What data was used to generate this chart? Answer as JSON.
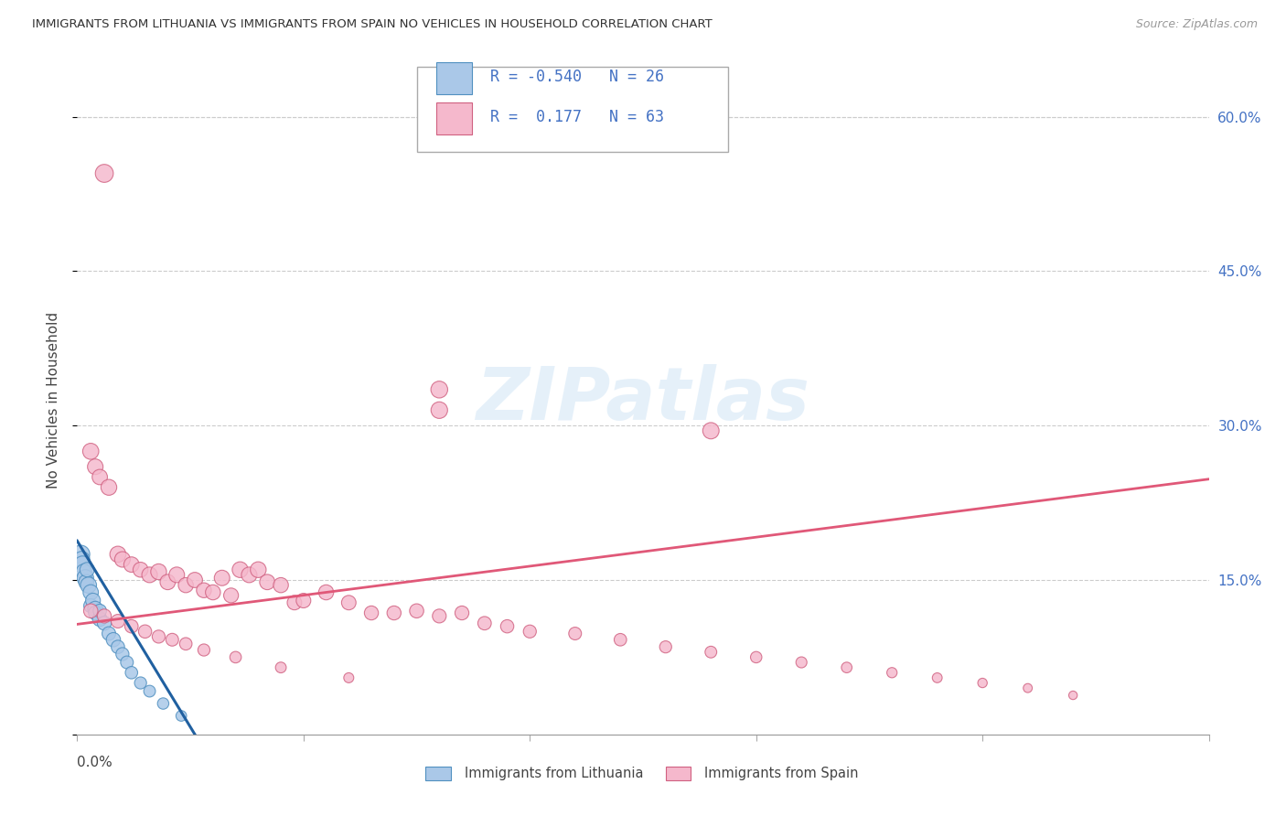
{
  "title": "IMMIGRANTS FROM LITHUANIA VS IMMIGRANTS FROM SPAIN NO VEHICLES IN HOUSEHOLD CORRELATION CHART",
  "source": "Source: ZipAtlas.com",
  "ylabel": "No Vehicles in Household",
  "xlim": [
    0.0,
    0.25
  ],
  "ylim": [
    0.0,
    0.65
  ],
  "lith_color_fill": "#aac8e8",
  "lith_color_edge": "#5090c0",
  "spain_color_fill": "#f5b8cc",
  "spain_color_edge": "#d06080",
  "lith_trend_color": "#2060a0",
  "spain_trend_color": "#e05878",
  "grid_color": "#cccccc",
  "right_tick_color": "#4472c4",
  "legend_text_color": "#4472c4",
  "R_lith_label": "R = -0.540",
  "N_lith_label": "N = 26",
  "R_spain_label": "R =  0.177",
  "N_spain_label": "N = 63",
  "lith_trend": [
    0.0,
    0.188,
    0.026,
    0.0
  ],
  "spain_trend": [
    0.0,
    0.107,
    0.25,
    0.248
  ],
  "lith_x": [
    0.0008,
    0.001,
    0.0012,
    0.0015,
    0.0018,
    0.002,
    0.0022,
    0.0025,
    0.003,
    0.003,
    0.0035,
    0.004,
    0.004,
    0.005,
    0.005,
    0.006,
    0.007,
    0.008,
    0.009,
    0.01,
    0.011,
    0.012,
    0.014,
    0.016,
    0.019,
    0.023
  ],
  "lith_y": [
    0.175,
    0.17,
    0.165,
    0.158,
    0.152,
    0.148,
    0.16,
    0.145,
    0.138,
    0.125,
    0.13,
    0.122,
    0.118,
    0.112,
    0.12,
    0.108,
    0.098,
    0.092,
    0.085,
    0.078,
    0.07,
    0.06,
    0.05,
    0.042,
    0.03,
    0.018
  ],
  "lith_s": [
    200,
    160,
    180,
    150,
    170,
    140,
    130,
    160,
    145,
    120,
    135,
    140,
    115,
    130,
    110,
    120,
    115,
    125,
    110,
    105,
    100,
    95,
    90,
    85,
    80,
    70
  ],
  "spain_x": [
    0.006,
    0.003,
    0.004,
    0.005,
    0.007,
    0.009,
    0.01,
    0.012,
    0.014,
    0.016,
    0.018,
    0.02,
    0.022,
    0.024,
    0.026,
    0.028,
    0.03,
    0.032,
    0.034,
    0.036,
    0.038,
    0.04,
    0.042,
    0.045,
    0.048,
    0.05,
    0.055,
    0.06,
    0.065,
    0.07,
    0.075,
    0.08,
    0.085,
    0.09,
    0.095,
    0.1,
    0.11,
    0.12,
    0.13,
    0.14,
    0.15,
    0.16,
    0.17,
    0.18,
    0.19,
    0.2,
    0.21,
    0.22,
    0.003,
    0.006,
    0.009,
    0.012,
    0.015,
    0.018,
    0.021,
    0.024,
    0.028,
    0.035,
    0.045,
    0.06,
    0.08,
    0.14,
    0.08
  ],
  "spain_y": [
    0.545,
    0.275,
    0.26,
    0.25,
    0.24,
    0.175,
    0.17,
    0.165,
    0.16,
    0.155,
    0.158,
    0.148,
    0.155,
    0.145,
    0.15,
    0.14,
    0.138,
    0.152,
    0.135,
    0.16,
    0.155,
    0.16,
    0.148,
    0.145,
    0.128,
    0.13,
    0.138,
    0.128,
    0.118,
    0.118,
    0.12,
    0.115,
    0.118,
    0.108,
    0.105,
    0.1,
    0.098,
    0.092,
    0.085,
    0.08,
    0.075,
    0.07,
    0.065,
    0.06,
    0.055,
    0.05,
    0.045,
    0.038,
    0.12,
    0.115,
    0.11,
    0.105,
    0.1,
    0.095,
    0.092,
    0.088,
    0.082,
    0.075,
    0.065,
    0.055,
    0.335,
    0.295,
    0.315
  ],
  "spain_s": [
    200,
    160,
    150,
    145,
    155,
    160,
    150,
    145,
    140,
    150,
    155,
    145,
    150,
    140,
    145,
    138,
    140,
    148,
    135,
    155,
    150,
    155,
    145,
    140,
    130,
    132,
    140,
    130,
    122,
    122,
    124,
    118,
    120,
    112,
    108,
    104,
    100,
    96,
    90,
    85,
    80,
    75,
    70,
    65,
    60,
    55,
    50,
    45,
    125,
    120,
    115,
    110,
    108,
    104,
    100,
    96,
    90,
    82,
    72,
    62,
    175,
    165,
    170
  ]
}
